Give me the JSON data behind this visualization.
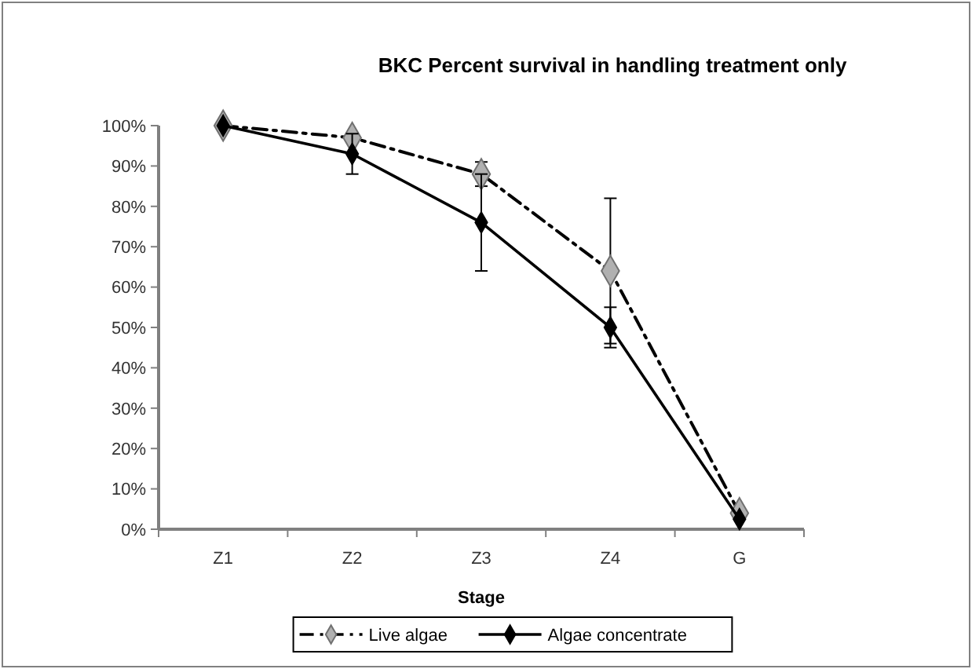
{
  "chart_data": {
    "type": "line",
    "title": "BKC Percent survival in handling treatment only",
    "xlabel": "Stage",
    "categories": [
      "Z1",
      "Z2",
      "Z3",
      "Z4",
      "G"
    ],
    "series": [
      {
        "name": "Live algae",
        "color": "#000000",
        "line_style": "dashed",
        "values": [
          100,
          97,
          88,
          64,
          4
        ],
        "errors": [
          null,
          null,
          3,
          18,
          null
        ]
      },
      {
        "name": "Algae concentrate",
        "color": "#000000",
        "line_style": "solid",
        "values": [
          100,
          93,
          76,
          50,
          2.5
        ],
        "errors": [
          null,
          5,
          12,
          5,
          null
        ]
      }
    ],
    "ylim": [
      0,
      100
    ],
    "yticks": [
      {
        "value": 0,
        "label": "0%"
      },
      {
        "value": 10,
        "label": "10%"
      },
      {
        "value": 20,
        "label": "20%"
      },
      {
        "value": 30,
        "label": "30%"
      },
      {
        "value": 40,
        "label": "40%"
      },
      {
        "value": 50,
        "label": "50%"
      },
      {
        "value": 60,
        "label": "60%"
      },
      {
        "value": 70,
        "label": "70%"
      },
      {
        "value": 80,
        "label": "80%"
      },
      {
        "value": 90,
        "label": "90%"
      },
      {
        "value": 100,
        "label": "100%"
      }
    ],
    "grid": false,
    "legend": "bottom",
    "marker": "diamond"
  }
}
